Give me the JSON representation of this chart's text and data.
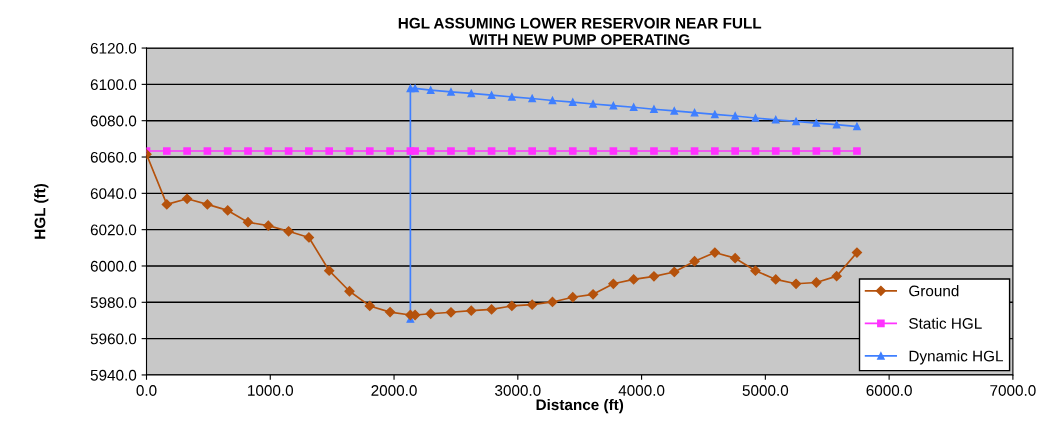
{
  "chart_data": {
    "type": "line",
    "title": "HGL ASSUMING LOWER RESERVOIR NEAR FULL\nWITH NEW PUMP OPERATING",
    "xlabel": "Distance (ft)",
    "ylabel": "HGL (ft)",
    "xlim": [
      0,
      7000
    ],
    "ylim": [
      5940,
      6120
    ],
    "xticks": [
      {
        "value": 0,
        "label": "0.0"
      },
      {
        "value": 1000,
        "label": "1000.0"
      },
      {
        "value": 2000,
        "label": "2000.0"
      },
      {
        "value": 3000,
        "label": "3000.0"
      },
      {
        "value": 4000,
        "label": "4000.0"
      },
      {
        "value": 5000,
        "label": "5000.0"
      },
      {
        "value": 6000,
        "label": "6000.0"
      },
      {
        "value": 7000,
        "label": "7000.0"
      }
    ],
    "yticks": [
      {
        "value": 5940,
        "label": "5940.0"
      },
      {
        "value": 5960,
        "label": "5960.0"
      },
      {
        "value": 5980,
        "label": "5980.0"
      },
      {
        "value": 6000,
        "label": "6000.0"
      },
      {
        "value": 6020,
        "label": "6020.0"
      },
      {
        "value": 6040,
        "label": "6040.0"
      },
      {
        "value": 6060,
        "label": "6060.0"
      },
      {
        "value": 6080,
        "label": "6080.0"
      },
      {
        "value": 6100,
        "label": "6100.0"
      },
      {
        "value": 6120,
        "label": "6120.0"
      }
    ],
    "grid": "y",
    "legend": "bottom right",
    "series": [
      {
        "name": "Ground",
        "color": "#b5520c",
        "marker": "diamond",
        "x": [
          0,
          164,
          328,
          492,
          656,
          820,
          984,
          1148,
          1312,
          1476,
          1640,
          1804,
          1968,
          2132,
          2170,
          2296,
          2460,
          2624,
          2788,
          2952,
          3116,
          3280,
          3444,
          3608,
          3772,
          3936,
          4100,
          4264,
          4428,
          4592,
          4756,
          4920,
          5084,
          5248,
          5412,
          5576,
          5740
        ],
        "values": [
          6061.5,
          6033.9,
          6037.0,
          6033.9,
          6030.6,
          6024.1,
          6022.2,
          6019.1,
          6015.7,
          5997.4,
          5986.1,
          5978.0,
          5974.6,
          5973.0,
          5973.0,
          5973.7,
          5974.5,
          5975.4,
          5976.1,
          5978.0,
          5978.7,
          5980.2,
          5982.8,
          5984.4,
          5990.2,
          5992.6,
          5994.3,
          5996.7,
          6002.6,
          6007.4,
          6004.3,
          5997.4,
          5992.6,
          5990.2,
          5990.9,
          5994.4,
          6007.4
        ]
      },
      {
        "name": "Static HGL",
        "color": "#ff33ff",
        "marker": "square",
        "x": [
          0,
          164,
          328,
          492,
          656,
          820,
          984,
          1148,
          1312,
          1476,
          1640,
          1804,
          1968,
          2132,
          2170,
          2296,
          2460,
          2624,
          2788,
          2952,
          3116,
          3280,
          3444,
          3608,
          3772,
          3936,
          4100,
          4264,
          4428,
          4592,
          4756,
          4920,
          5084,
          5248,
          5412,
          5576,
          5740
        ],
        "values": [
          6063.3,
          6063.3,
          6063.3,
          6063.3,
          6063.3,
          6063.3,
          6063.3,
          6063.3,
          6063.3,
          6063.3,
          6063.3,
          6063.3,
          6063.3,
          6063.3,
          6063.3,
          6063.3,
          6063.3,
          6063.3,
          6063.3,
          6063.3,
          6063.3,
          6063.3,
          6063.3,
          6063.3,
          6063.3,
          6063.3,
          6063.3,
          6063.3,
          6063.3,
          6063.3,
          6063.3,
          6063.3,
          6063.3,
          6063.3,
          6063.3,
          6063.3,
          6063.3
        ]
      },
      {
        "name": "Dynamic HGL",
        "color": "#3f7fff",
        "marker": "triangle",
        "x": [
          2132,
          2132,
          2170,
          2296,
          2460,
          2624,
          2788,
          2952,
          3116,
          3280,
          3444,
          3608,
          3772,
          3936,
          4100,
          4264,
          4428,
          4592,
          4756,
          4920,
          5084,
          5248,
          5412,
          5576,
          5740
        ],
        "values": [
          5970.8,
          6097.8,
          6097.8,
          6096.8,
          6095.9,
          6095.0,
          6094.1,
          6093.1,
          6092.2,
          6091.1,
          6090.2,
          6089.2,
          6088.3,
          6087.4,
          6086.3,
          6085.4,
          6084.4,
          6083.5,
          6082.6,
          6081.5,
          6080.5,
          6079.6,
          6078.7,
          6077.8,
          6076.8
        ]
      }
    ]
  }
}
